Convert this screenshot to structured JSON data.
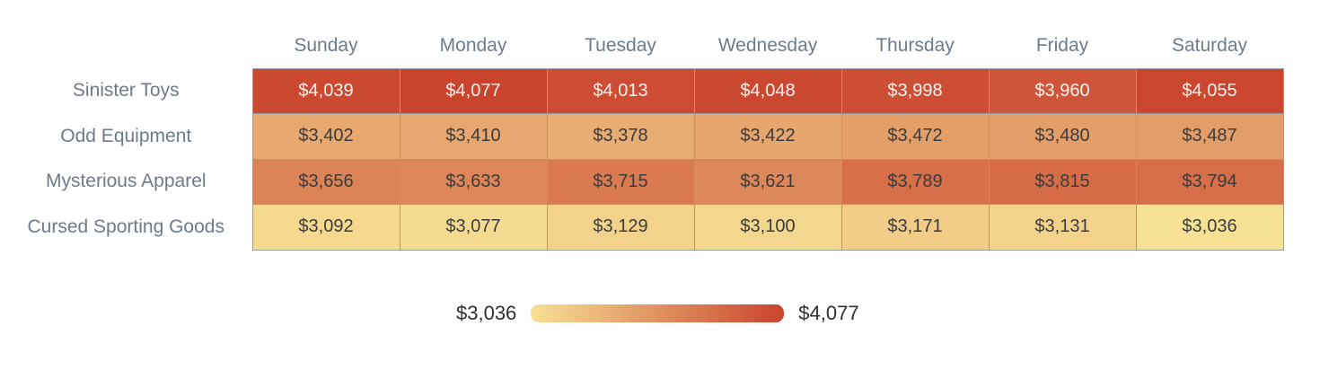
{
  "chart_data": {
    "type": "heatmap",
    "columns": [
      "Sunday",
      "Monday",
      "Tuesday",
      "Wednesday",
      "Thursday",
      "Friday",
      "Saturday"
    ],
    "rows": [
      "Sinister Toys",
      "Odd Equipment",
      "Mysterious Apparel",
      "Cursed Sporting Goods"
    ],
    "values": [
      [
        4039,
        4077,
        4013,
        4048,
        3998,
        3960,
        4055
      ],
      [
        3402,
        3410,
        3378,
        3422,
        3472,
        3480,
        3487
      ],
      [
        3656,
        3633,
        3715,
        3621,
        3789,
        3815,
        3794
      ],
      [
        3092,
        3077,
        3129,
        3100,
        3171,
        3131,
        3036
      ]
    ],
    "value_prefix": "$",
    "color_scale": {
      "min": 3036,
      "max": 4077,
      "min_color": "#F7E195",
      "max_color": "#C9432D",
      "light_text_threshold": 0.85
    },
    "colors": {
      "cell_text_dark": "#3b3b3b",
      "cell_text_light": "#faf3f0",
      "axis_label": "#6e7b8a",
      "grid_border": "#969da5"
    },
    "legend": {
      "min_label": "$3,036",
      "max_label": "$4,077"
    },
    "grid": true,
    "legend_position": "bottom-center"
  }
}
